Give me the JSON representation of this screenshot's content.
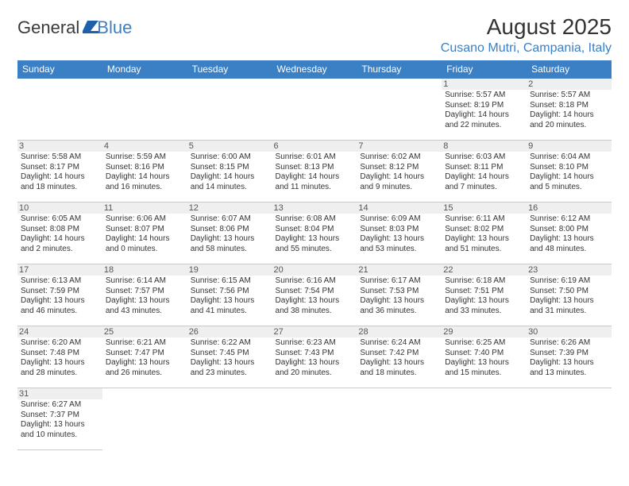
{
  "brand": {
    "part1": "General",
    "part2": "Blue"
  },
  "title": "August 2025",
  "location": "Cusano Mutri, Campania, Italy",
  "colors": {
    "accent": "#3b7fc4",
    "header_text": "#ffffff",
    "grid_line": "#3b7fc4",
    "day_bg": "#efefef"
  },
  "weekdays": [
    "Sunday",
    "Monday",
    "Tuesday",
    "Wednesday",
    "Thursday",
    "Friday",
    "Saturday"
  ],
  "weeks": [
    [
      null,
      null,
      null,
      null,
      null,
      {
        "d": "1",
        "sr": "Sunrise: 5:57 AM",
        "ss": "Sunset: 8:19 PM",
        "dl1": "Daylight: 14 hours",
        "dl2": "and 22 minutes."
      },
      {
        "d": "2",
        "sr": "Sunrise: 5:57 AM",
        "ss": "Sunset: 8:18 PM",
        "dl1": "Daylight: 14 hours",
        "dl2": "and 20 minutes."
      }
    ],
    [
      {
        "d": "3",
        "sr": "Sunrise: 5:58 AM",
        "ss": "Sunset: 8:17 PM",
        "dl1": "Daylight: 14 hours",
        "dl2": "and 18 minutes."
      },
      {
        "d": "4",
        "sr": "Sunrise: 5:59 AM",
        "ss": "Sunset: 8:16 PM",
        "dl1": "Daylight: 14 hours",
        "dl2": "and 16 minutes."
      },
      {
        "d": "5",
        "sr": "Sunrise: 6:00 AM",
        "ss": "Sunset: 8:15 PM",
        "dl1": "Daylight: 14 hours",
        "dl2": "and 14 minutes."
      },
      {
        "d": "6",
        "sr": "Sunrise: 6:01 AM",
        "ss": "Sunset: 8:13 PM",
        "dl1": "Daylight: 14 hours",
        "dl2": "and 11 minutes."
      },
      {
        "d": "7",
        "sr": "Sunrise: 6:02 AM",
        "ss": "Sunset: 8:12 PM",
        "dl1": "Daylight: 14 hours",
        "dl2": "and 9 minutes."
      },
      {
        "d": "8",
        "sr": "Sunrise: 6:03 AM",
        "ss": "Sunset: 8:11 PM",
        "dl1": "Daylight: 14 hours",
        "dl2": "and 7 minutes."
      },
      {
        "d": "9",
        "sr": "Sunrise: 6:04 AM",
        "ss": "Sunset: 8:10 PM",
        "dl1": "Daylight: 14 hours",
        "dl2": "and 5 minutes."
      }
    ],
    [
      {
        "d": "10",
        "sr": "Sunrise: 6:05 AM",
        "ss": "Sunset: 8:08 PM",
        "dl1": "Daylight: 14 hours",
        "dl2": "and 2 minutes."
      },
      {
        "d": "11",
        "sr": "Sunrise: 6:06 AM",
        "ss": "Sunset: 8:07 PM",
        "dl1": "Daylight: 14 hours",
        "dl2": "and 0 minutes."
      },
      {
        "d": "12",
        "sr": "Sunrise: 6:07 AM",
        "ss": "Sunset: 8:06 PM",
        "dl1": "Daylight: 13 hours",
        "dl2": "and 58 minutes."
      },
      {
        "d": "13",
        "sr": "Sunrise: 6:08 AM",
        "ss": "Sunset: 8:04 PM",
        "dl1": "Daylight: 13 hours",
        "dl2": "and 55 minutes."
      },
      {
        "d": "14",
        "sr": "Sunrise: 6:09 AM",
        "ss": "Sunset: 8:03 PM",
        "dl1": "Daylight: 13 hours",
        "dl2": "and 53 minutes."
      },
      {
        "d": "15",
        "sr": "Sunrise: 6:11 AM",
        "ss": "Sunset: 8:02 PM",
        "dl1": "Daylight: 13 hours",
        "dl2": "and 51 minutes."
      },
      {
        "d": "16",
        "sr": "Sunrise: 6:12 AM",
        "ss": "Sunset: 8:00 PM",
        "dl1": "Daylight: 13 hours",
        "dl2": "and 48 minutes."
      }
    ],
    [
      {
        "d": "17",
        "sr": "Sunrise: 6:13 AM",
        "ss": "Sunset: 7:59 PM",
        "dl1": "Daylight: 13 hours",
        "dl2": "and 46 minutes."
      },
      {
        "d": "18",
        "sr": "Sunrise: 6:14 AM",
        "ss": "Sunset: 7:57 PM",
        "dl1": "Daylight: 13 hours",
        "dl2": "and 43 minutes."
      },
      {
        "d": "19",
        "sr": "Sunrise: 6:15 AM",
        "ss": "Sunset: 7:56 PM",
        "dl1": "Daylight: 13 hours",
        "dl2": "and 41 minutes."
      },
      {
        "d": "20",
        "sr": "Sunrise: 6:16 AM",
        "ss": "Sunset: 7:54 PM",
        "dl1": "Daylight: 13 hours",
        "dl2": "and 38 minutes."
      },
      {
        "d": "21",
        "sr": "Sunrise: 6:17 AM",
        "ss": "Sunset: 7:53 PM",
        "dl1": "Daylight: 13 hours",
        "dl2": "and 36 minutes."
      },
      {
        "d": "22",
        "sr": "Sunrise: 6:18 AM",
        "ss": "Sunset: 7:51 PM",
        "dl1": "Daylight: 13 hours",
        "dl2": "and 33 minutes."
      },
      {
        "d": "23",
        "sr": "Sunrise: 6:19 AM",
        "ss": "Sunset: 7:50 PM",
        "dl1": "Daylight: 13 hours",
        "dl2": "and 31 minutes."
      }
    ],
    [
      {
        "d": "24",
        "sr": "Sunrise: 6:20 AM",
        "ss": "Sunset: 7:48 PM",
        "dl1": "Daylight: 13 hours",
        "dl2": "and 28 minutes."
      },
      {
        "d": "25",
        "sr": "Sunrise: 6:21 AM",
        "ss": "Sunset: 7:47 PM",
        "dl1": "Daylight: 13 hours",
        "dl2": "and 26 minutes."
      },
      {
        "d": "26",
        "sr": "Sunrise: 6:22 AM",
        "ss": "Sunset: 7:45 PM",
        "dl1": "Daylight: 13 hours",
        "dl2": "and 23 minutes."
      },
      {
        "d": "27",
        "sr": "Sunrise: 6:23 AM",
        "ss": "Sunset: 7:43 PM",
        "dl1": "Daylight: 13 hours",
        "dl2": "and 20 minutes."
      },
      {
        "d": "28",
        "sr": "Sunrise: 6:24 AM",
        "ss": "Sunset: 7:42 PM",
        "dl1": "Daylight: 13 hours",
        "dl2": "and 18 minutes."
      },
      {
        "d": "29",
        "sr": "Sunrise: 6:25 AM",
        "ss": "Sunset: 7:40 PM",
        "dl1": "Daylight: 13 hours",
        "dl2": "and 15 minutes."
      },
      {
        "d": "30",
        "sr": "Sunrise: 6:26 AM",
        "ss": "Sunset: 7:39 PM",
        "dl1": "Daylight: 13 hours",
        "dl2": "and 13 minutes."
      }
    ],
    [
      {
        "d": "31",
        "sr": "Sunrise: 6:27 AM",
        "ss": "Sunset: 7:37 PM",
        "dl1": "Daylight: 13 hours",
        "dl2": "and 10 minutes."
      },
      null,
      null,
      null,
      null,
      null,
      null
    ]
  ]
}
